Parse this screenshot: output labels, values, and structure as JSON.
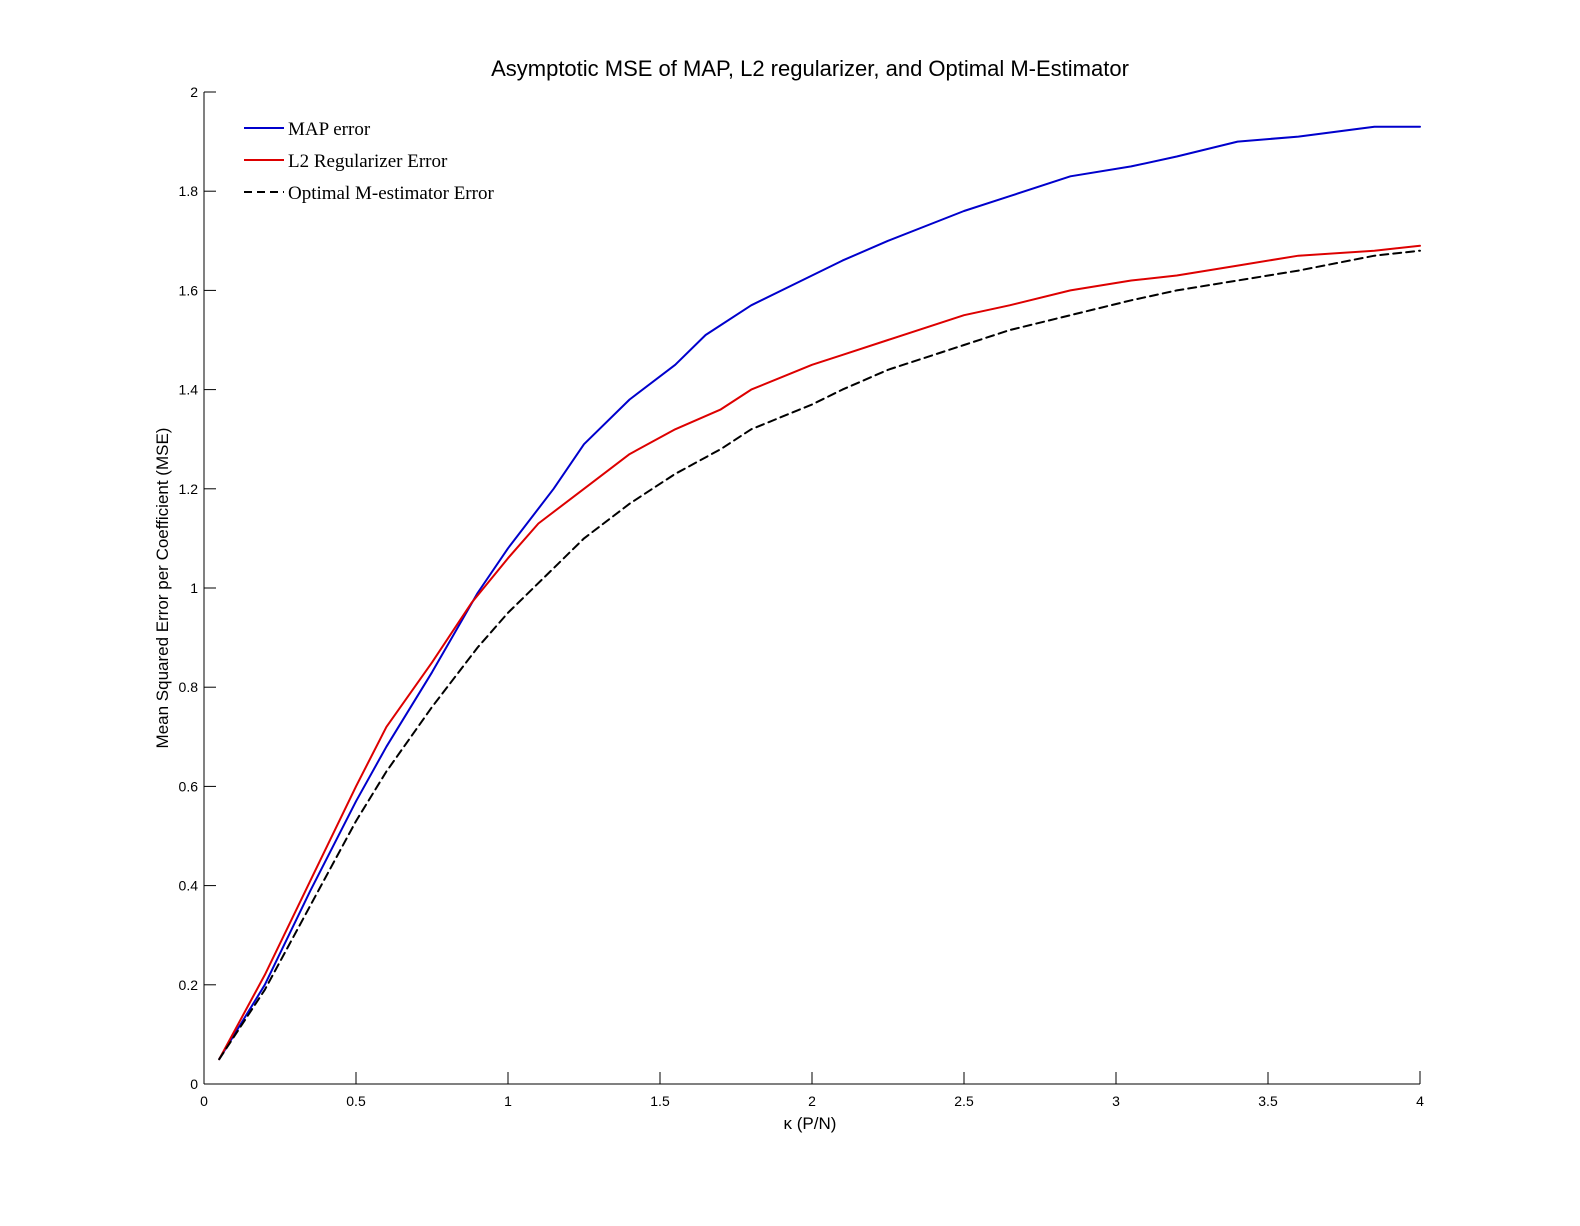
{
  "chart_data": {
    "type": "line",
    "title": "Asymptotic MSE of MAP, L2 regularizer, and Optimal M-Estimator",
    "xlabel": "κ (P/N)",
    "ylabel": "Mean Squared Error per Coefficient (MSE)",
    "xlim": [
      0,
      4
    ],
    "ylim": [
      0,
      2
    ],
    "xticks": [
      0,
      0.5,
      1,
      1.5,
      2,
      2.5,
      3,
      3.5,
      4
    ],
    "xtick_labels": [
      "0",
      "0.5",
      "1",
      "1.5",
      "2",
      "2.5",
      "3",
      "3.5",
      "4"
    ],
    "yticks": [
      0,
      0.2,
      0.4,
      0.6,
      0.8,
      1,
      1.2,
      1.4,
      1.6,
      1.8,
      2
    ],
    "ytick_labels": [
      "0",
      "0.2",
      "0.4",
      "0.6",
      "0.8",
      "1",
      "1.2",
      "1.4",
      "1.6",
      "1.8",
      "2"
    ],
    "grid": false,
    "legend_position": "top-left",
    "series": [
      {
        "name": "MAP error",
        "color": "#0000cc",
        "dash": "solid",
        "x": [
          0.05,
          0.2,
          0.35,
          0.5,
          0.6,
          0.75,
          0.9,
          1.0,
          1.15,
          1.25,
          1.4,
          1.55,
          1.65,
          1.8,
          2.0,
          2.1,
          2.25,
          2.5,
          2.65,
          2.85,
          3.05,
          3.2,
          3.4,
          3.6,
          3.85,
          4.0
        ],
        "y": [
          0.05,
          0.2,
          0.39,
          0.57,
          0.68,
          0.83,
          0.99,
          1.08,
          1.2,
          1.29,
          1.38,
          1.45,
          1.51,
          1.57,
          1.63,
          1.66,
          1.7,
          1.76,
          1.79,
          1.83,
          1.85,
          1.87,
          1.9,
          1.91,
          1.93,
          1.93
        ]
      },
      {
        "name": "L2 Regularizer Error",
        "color": "#dd0000",
        "dash": "solid",
        "x": [
          0.05,
          0.2,
          0.35,
          0.5,
          0.6,
          0.75,
          0.88,
          1.0,
          1.1,
          1.25,
          1.4,
          1.55,
          1.7,
          1.8,
          2.0,
          2.1,
          2.25,
          2.5,
          2.65,
          2.85,
          3.05,
          3.2,
          3.4,
          3.6,
          3.85,
          4.0
        ],
        "y": [
          0.05,
          0.22,
          0.41,
          0.6,
          0.72,
          0.85,
          0.97,
          1.06,
          1.13,
          1.2,
          1.27,
          1.32,
          1.36,
          1.4,
          1.45,
          1.47,
          1.5,
          1.55,
          1.57,
          1.6,
          1.62,
          1.63,
          1.65,
          1.67,
          1.68,
          1.69
        ]
      },
      {
        "name": "Optimal M-estimator Error",
        "color": "#000000",
        "dash": "dashed",
        "x": [
          0.05,
          0.2,
          0.35,
          0.5,
          0.6,
          0.75,
          0.9,
          1.0,
          1.15,
          1.25,
          1.4,
          1.55,
          1.7,
          1.8,
          2.0,
          2.1,
          2.25,
          2.5,
          2.65,
          2.85,
          3.05,
          3.2,
          3.4,
          3.6,
          3.85,
          4.0
        ],
        "y": [
          0.05,
          0.19,
          0.36,
          0.53,
          0.63,
          0.76,
          0.88,
          0.95,
          1.04,
          1.1,
          1.17,
          1.23,
          1.28,
          1.32,
          1.37,
          1.4,
          1.44,
          1.49,
          1.52,
          1.55,
          1.58,
          1.6,
          1.62,
          1.64,
          1.67,
          1.68
        ]
      }
    ]
  }
}
